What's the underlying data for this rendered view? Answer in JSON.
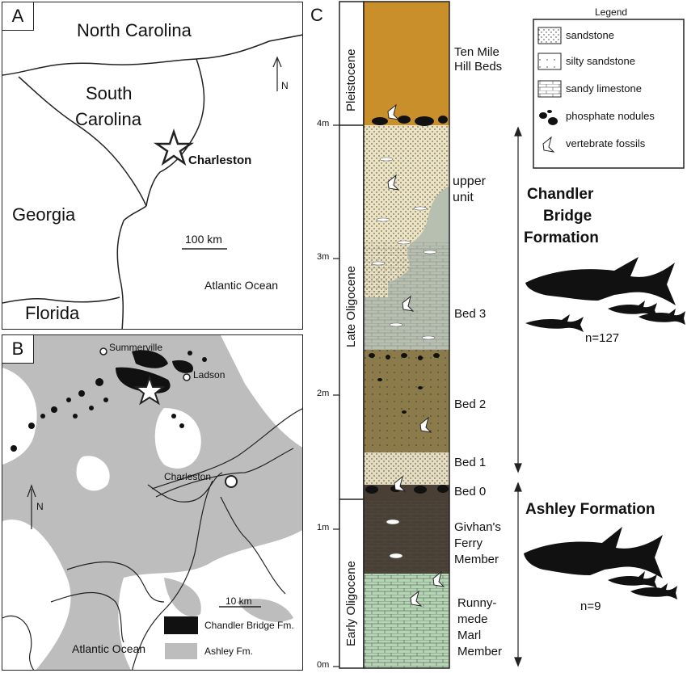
{
  "panel_a": {
    "label": "A",
    "north_carolina": "North Carolina",
    "south_carolina_1": "South",
    "south_carolina_2": "Carolina",
    "georgia": "Georgia",
    "florida": "Florida",
    "charleston": "Charleston",
    "atlantic": "Atlantic Ocean",
    "scale": "100 km",
    "north": "N"
  },
  "panel_b": {
    "label": "B",
    "summerville": "Summerville",
    "ladson": "Ladson",
    "charleston": "Charleston",
    "atlantic": "Atlantic Ocean",
    "scale": "10 km",
    "north": "N",
    "legend_chandler": "Chandler Bridge Fm.",
    "legend_ashley": "Ashley Fm."
  },
  "panel_c": {
    "label": "C",
    "epochs": [
      "Pleistocene",
      "Late Oligocene",
      "Early Oligocene"
    ],
    "ticks": [
      "4m",
      "3m",
      "2m",
      "1m",
      "0m"
    ],
    "units": {
      "ten_mile_1": "Ten Mile",
      "ten_mile_2": "Hill Beds",
      "upper_1": "upper",
      "upper_2": "unit",
      "bed3": "Bed 3",
      "bed2": "Bed 2",
      "bed1": "Bed 1",
      "bed0": "Bed 0",
      "givhans_1": "Givhan's",
      "givhans_2": "Ferry",
      "givhans_3": "Member",
      "runny_1": "Runny-",
      "runny_2": "mede",
      "runny_3": "Marl",
      "runny_4": "Member"
    },
    "legend": {
      "title": "Legend",
      "items": [
        "sandstone",
        "silty sandstone",
        "sandy limestone",
        "phosphate nodules",
        "vertebrate fossils"
      ]
    },
    "chandler_1": "Chandler",
    "chandler_2": "Bridge",
    "chandler_3": "Formation",
    "chandler_n": "n=127",
    "ashley": "Ashley Formation",
    "ashley_n": "n=9"
  }
}
